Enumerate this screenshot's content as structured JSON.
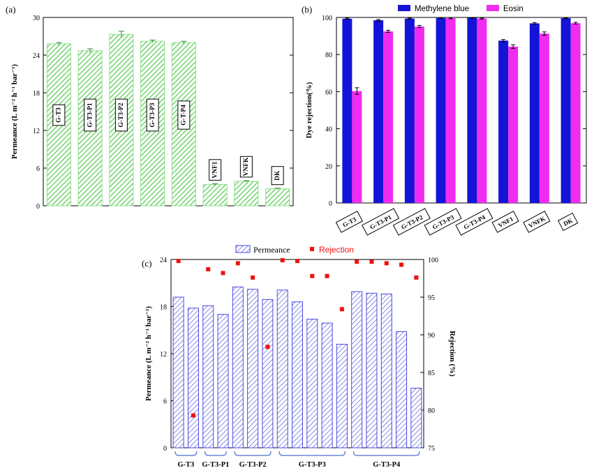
{
  "chart_data": [
    {
      "panel": "(a)",
      "type": "bar",
      "ylabel": "Permeance (L m⁻² h⁻¹ bar⁻¹)",
      "ylim": [
        0,
        30
      ],
      "yticks": [
        "0",
        "6",
        "12",
        "18",
        "24",
        "30"
      ],
      "categories": [
        "G-T3",
        "G-T3-P1",
        "G-T3-P2",
        "G-T3-P3",
        "G-T-P4",
        "VNF1",
        "VNFK",
        "DK"
      ],
      "values": [
        25.8,
        24.7,
        27.3,
        26.2,
        26.0,
        3.4,
        3.9,
        2.7
      ],
      "errors": [
        0.2,
        0.3,
        0.5,
        0.2,
        0.2,
        0.1,
        0.1,
        0.1
      ],
      "color": "#8ee08a"
    },
    {
      "panel": "(b)",
      "type": "bar",
      "ylabel": "Dye rejection(%)",
      "ylim": [
        0,
        100
      ],
      "yticks": [
        "0",
        "20",
        "40",
        "60",
        "80",
        "100"
      ],
      "legend_position": "top",
      "categories": [
        "G-T3",
        "G-T3-P1",
        "G-T3-P2",
        "G-T3-P3",
        "G-T3-P4",
        "VNF1",
        "VNFK",
        "DK"
      ],
      "series": [
        {
          "name": "Methylene blue",
          "color": "#1414d8",
          "values": [
            99.3,
            98.5,
            99.4,
            99.7,
            99.8,
            87.5,
            96.8,
            99.6
          ],
          "errors": [
            0.3,
            0.4,
            0.3,
            0.2,
            0.2,
            0.6,
            0.4,
            0.2
          ]
        },
        {
          "name": "Eosin",
          "color": "#f02cf0",
          "values": [
            60.3,
            92.5,
            95.1,
            99.6,
            99.4,
            84.3,
            91.3,
            96.9
          ],
          "errors": [
            1.8,
            0.6,
            0.6,
            0.3,
            0.3,
            1.0,
            0.9,
            0.5
          ]
        }
      ]
    },
    {
      "panel": "(c)",
      "type": "bar",
      "ylabel": "Permeance (L m⁻² h⁻¹ bar⁻¹)",
      "y2label": "Rejection (%)",
      "ylim": [
        0,
        24
      ],
      "y2lim": [
        75,
        100
      ],
      "yticks": [
        "0",
        "6",
        "12",
        "18",
        "24"
      ],
      "y2ticks": [
        "75",
        "80",
        "85",
        "90",
        "95",
        "100"
      ],
      "groups": [
        "G-T3",
        "G-T3-P1",
        "G-T3-P2",
        "G-T3-P3",
        "G-T3-P4"
      ],
      "group_sizes": [
        2,
        2,
        3,
        5,
        5
      ],
      "series": [
        {
          "name": "Permeance",
          "axis": "left",
          "color": "#4a4ae0",
          "values": [
            19.2,
            17.8,
            18.1,
            17.0,
            20.5,
            20.2,
            18.9,
            20.1,
            18.6,
            16.4,
            15.9,
            13.2,
            19.9,
            19.7,
            19.6,
            14.8,
            7.6
          ]
        },
        {
          "name": "Rejection",
          "axis": "right",
          "color": "#ee1111",
          "values": [
            99.8,
            79.3,
            98.7,
            98.2,
            99.5,
            97.6,
            88.4,
            99.9,
            99.8,
            97.8,
            97.8,
            93.4,
            99.7,
            99.7,
            99.5,
            99.3,
            97.6
          ]
        }
      ]
    }
  ]
}
